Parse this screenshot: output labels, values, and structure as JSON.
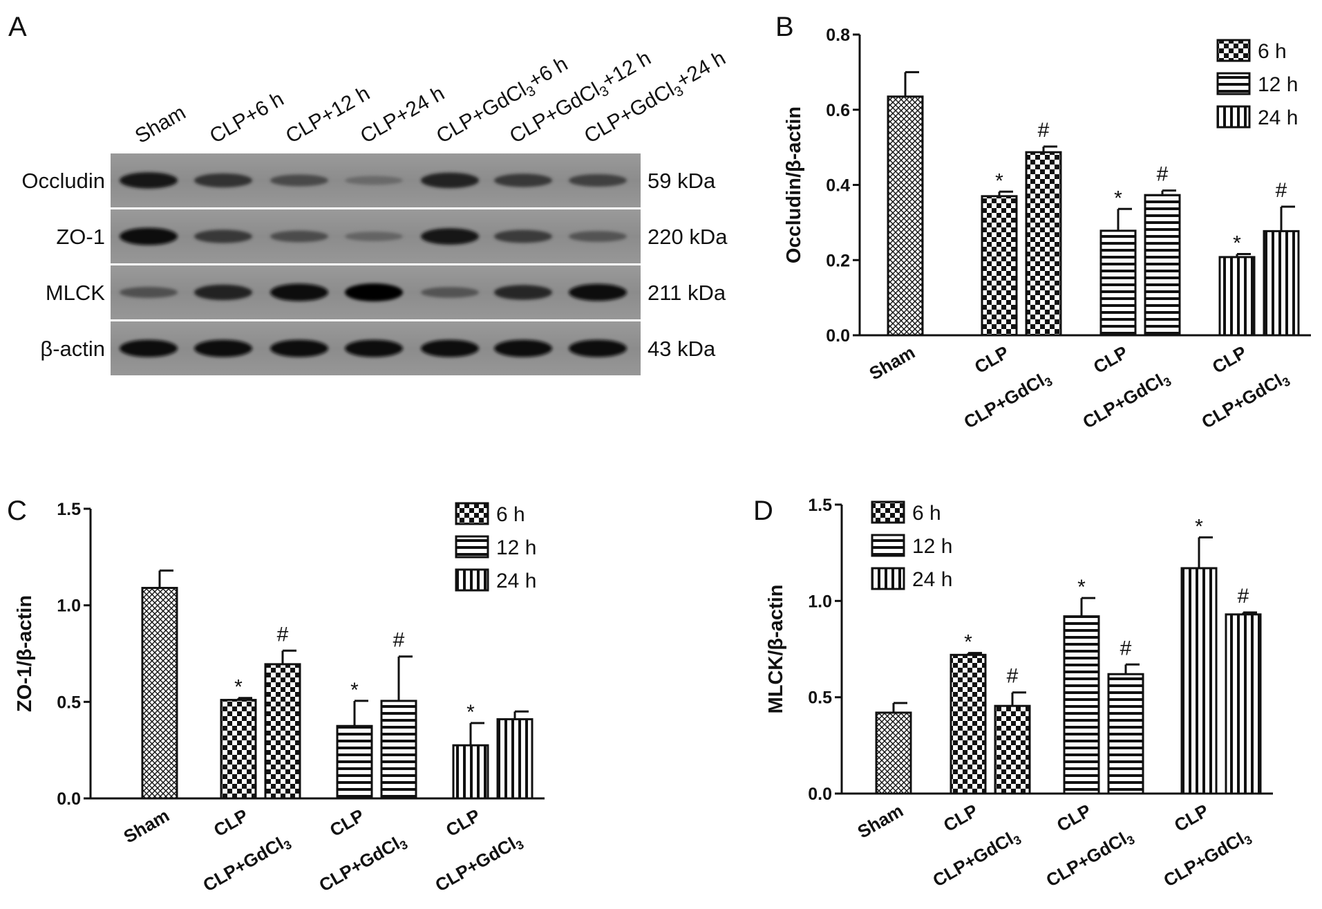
{
  "panels": {
    "a": {
      "label": "A",
      "lanes": [
        "Sham",
        "CLP+6 h",
        "CLP+12 h",
        "CLP+24 h",
        "CLP+GdCl3+6 h",
        "CLP+GdCl3+12 h",
        "CLP+GdCl3+24 h"
      ],
      "blots": [
        {
          "protein": "Occludin",
          "kda": "59 kDa",
          "intensity": [
            0.86,
            0.68,
            0.5,
            0.26,
            0.8,
            0.62,
            0.56
          ]
        },
        {
          "protein": "ZO-1",
          "kda": "220 kDa",
          "intensity": [
            0.95,
            0.62,
            0.48,
            0.3,
            0.88,
            0.6,
            0.42
          ]
        },
        {
          "protein": "MLCK",
          "kda": "211 kDa",
          "intensity": [
            0.45,
            0.8,
            0.96,
            1.0,
            0.42,
            0.75,
            0.92
          ]
        },
        {
          "protein": "β-actin",
          "kda": "43 kDa",
          "intensity": [
            0.95,
            0.95,
            0.95,
            0.95,
            0.95,
            0.95,
            0.95
          ]
        }
      ]
    },
    "b": {
      "label": "B"
    },
    "c": {
      "label": "C"
    },
    "d": {
      "label": "D"
    }
  },
  "chart_data": [
    {
      "id": "B",
      "type": "bar",
      "ylabel": "Occludin/β-actin",
      "ylim": [
        0,
        0.8
      ],
      "yticks": [
        "0.0",
        "0.2",
        "0.4",
        "0.6",
        "0.8"
      ],
      "legend": [
        "6 h",
        "12 h",
        "24 h"
      ],
      "legend_position": "top-right",
      "bars": [
        {
          "group": "Sham",
          "pattern": "crosshatch",
          "value": 0.635,
          "err": 0.065,
          "mark": ""
        },
        {
          "group": "CLP",
          "pattern": "checker",
          "value": 0.37,
          "err": 0.012,
          "mark": "*"
        },
        {
          "group": "CLP+GdCl3",
          "pattern": "checker",
          "value": 0.487,
          "err": 0.015,
          "mark": "#"
        },
        {
          "group": "CLP",
          "pattern": "hstripe",
          "value": 0.278,
          "err": 0.058,
          "mark": "*"
        },
        {
          "group": "CLP+GdCl3",
          "pattern": "hstripe",
          "value": 0.373,
          "err": 0.012,
          "mark": "#"
        },
        {
          "group": "CLP",
          "pattern": "vstripe",
          "value": 0.208,
          "err": 0.008,
          "mark": "*"
        },
        {
          "group": "CLP+GdCl3",
          "pattern": "vstripe",
          "value": 0.277,
          "err": 0.065,
          "mark": "#"
        }
      ]
    },
    {
      "id": "C",
      "type": "bar",
      "ylabel": "ZO-1/β-actin",
      "ylim": [
        0,
        1.5
      ],
      "yticks": [
        "0.0",
        "0.5",
        "1.0",
        "1.5"
      ],
      "legend": [
        "6 h",
        "12 h",
        "24 h"
      ],
      "legend_position": "top-right",
      "bars": [
        {
          "group": "Sham",
          "pattern": "crosshatch",
          "value": 1.09,
          "err": 0.09,
          "mark": ""
        },
        {
          "group": "CLP",
          "pattern": "checker",
          "value": 0.51,
          "err": 0.01,
          "mark": "*"
        },
        {
          "group": "CLP+GdCl3",
          "pattern": "checker",
          "value": 0.695,
          "err": 0.07,
          "mark": "#"
        },
        {
          "group": "CLP",
          "pattern": "hstripe",
          "value": 0.375,
          "err": 0.13,
          "mark": "*"
        },
        {
          "group": "CLP+GdCl3",
          "pattern": "hstripe",
          "value": 0.505,
          "err": 0.23,
          "mark": "#"
        },
        {
          "group": "CLP",
          "pattern": "vstripe",
          "value": 0.275,
          "err": 0.115,
          "mark": "*"
        },
        {
          "group": "CLP+GdCl3",
          "pattern": "vstripe",
          "value": 0.41,
          "err": 0.04,
          "mark": ""
        }
      ]
    },
    {
      "id": "D",
      "type": "bar",
      "ylabel": "MLCK/β-actin",
      "ylim": [
        0,
        1.5
      ],
      "yticks": [
        "0.0",
        "0.5",
        "1.0",
        "1.5"
      ],
      "legend": [
        "6 h",
        "12 h",
        "24 h"
      ],
      "legend_position": "top-left",
      "bars": [
        {
          "group": "Sham",
          "pattern": "crosshatch",
          "value": 0.42,
          "err": 0.05,
          "mark": ""
        },
        {
          "group": "CLP",
          "pattern": "checker",
          "value": 0.72,
          "err": 0.01,
          "mark": "*"
        },
        {
          "group": "CLP+GdCl3",
          "pattern": "checker",
          "value": 0.455,
          "err": 0.07,
          "mark": "#"
        },
        {
          "group": "CLP",
          "pattern": "hstripe",
          "value": 0.92,
          "err": 0.095,
          "mark": "*"
        },
        {
          "group": "CLP+GdCl3",
          "pattern": "hstripe",
          "value": 0.62,
          "err": 0.05,
          "mark": "#"
        },
        {
          "group": "CLP",
          "pattern": "vstripe",
          "value": 1.17,
          "err": 0.16,
          "mark": "*"
        },
        {
          "group": "CLP+GdCl3",
          "pattern": "vstripe",
          "value": 0.93,
          "err": 0.01,
          "mark": "#"
        }
      ]
    }
  ]
}
